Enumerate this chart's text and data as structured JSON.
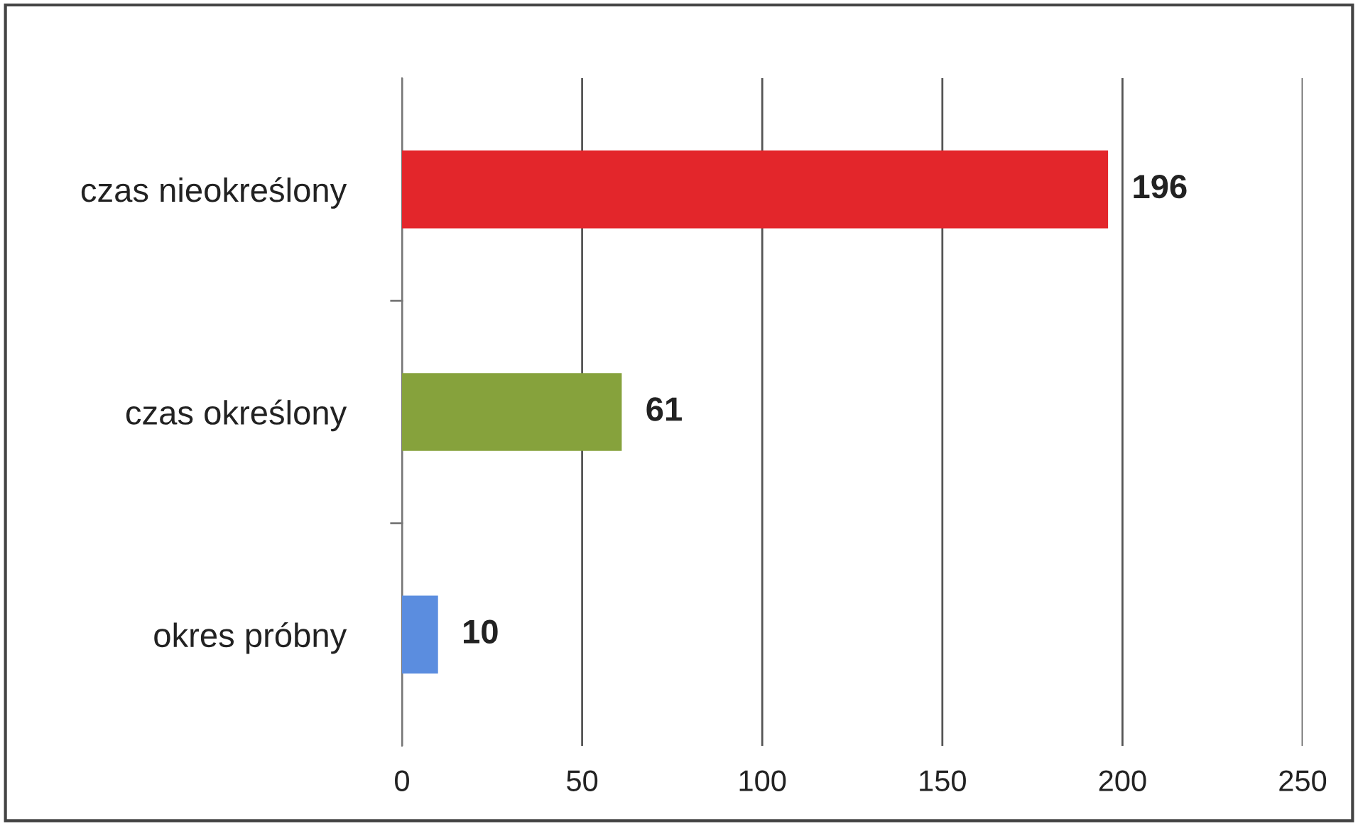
{
  "chart_data": {
    "type": "bar",
    "orientation": "horizontal",
    "categories": [
      "czas nieokreślony",
      "czas określony",
      "okres próbny"
    ],
    "values": [
      196,
      61,
      10
    ],
    "colors": [
      "#e3262b",
      "#86a23c",
      "#5b8ddf"
    ],
    "xlim": [
      0,
      250
    ],
    "xticks": [
      0,
      50,
      100,
      150,
      200,
      250
    ],
    "grid": "x",
    "data_labels": true
  }
}
